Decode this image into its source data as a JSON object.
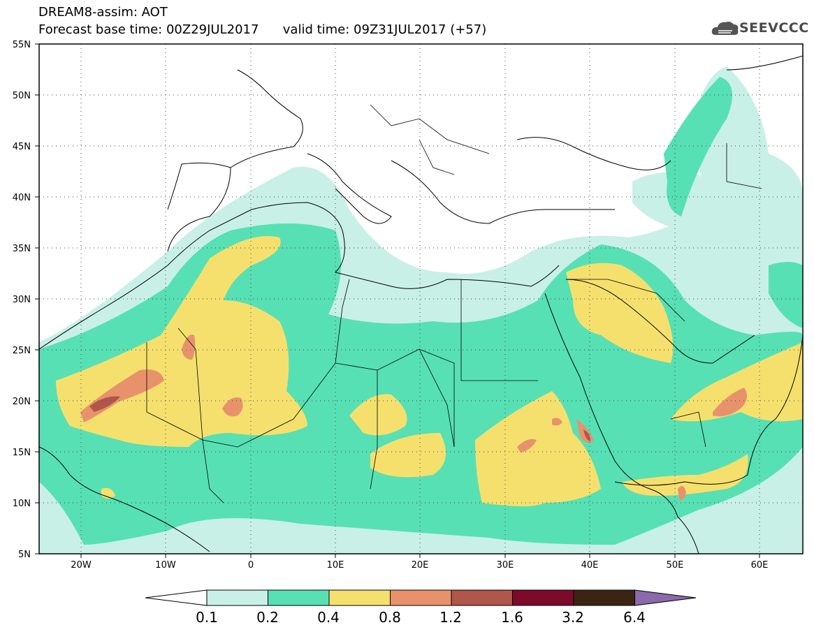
{
  "header": {
    "line1": "DREAM8-assim: AOT",
    "line2": "Forecast base time: 00Z29JUL2017      valid time: 09Z31JUL2017 (+57)"
  },
  "logo": {
    "text": "SEEVCCC",
    "icon": "cloud-logo-icon"
  },
  "map": {
    "lat_labels": [
      "55N",
      "50N",
      "45N",
      "40N",
      "35N",
      "30N",
      "25N",
      "20N",
      "15N",
      "10N",
      "5N"
    ],
    "lon_labels": [
      "20W",
      "10W",
      "0",
      "10E",
      "20E",
      "30E",
      "40E",
      "50E",
      "60E"
    ],
    "extent": {
      "lon_min": -25,
      "lon_max": 65,
      "lat_min": 5,
      "lat_max": 55
    },
    "gridlines": "dotted"
  },
  "colorbar": {
    "levels": [
      "0.1",
      "0.2",
      "0.4",
      "0.8",
      "1.2",
      "1.6",
      "3.2",
      "6.4"
    ],
    "colors": [
      "#ffffff",
      "#c8f0e6",
      "#57e0b4",
      "#f5e06e",
      "#e8926c",
      "#b0564a",
      "#7c0a2a",
      "#3b2414",
      "#8a6aaa"
    ]
  },
  "aot_colors": {
    "c1": "#c8f0e6",
    "c2": "#57e0b4",
    "c3": "#f5e06e",
    "c4": "#e8926c",
    "c5": "#b0564a",
    "c6": "#7c0a2a"
  }
}
